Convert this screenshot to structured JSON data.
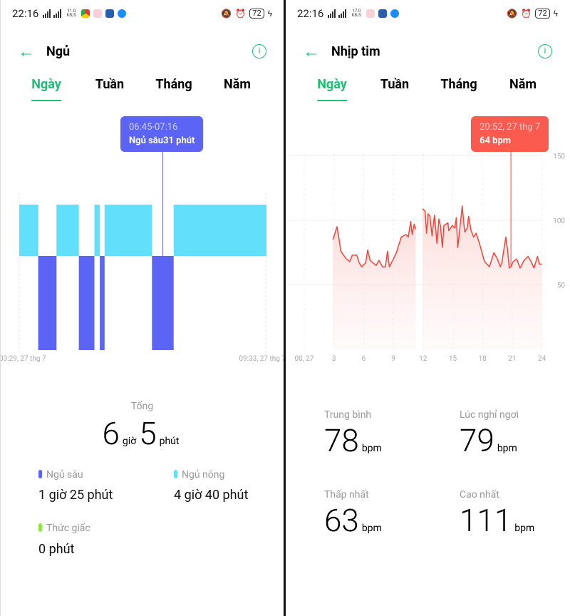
{
  "status_left": {
    "time": "22:16",
    "net_speed": "11.0 KB/S",
    "battery": "72"
  },
  "status_right": {
    "time": "22:16",
    "net_speed": "17.0 KB/S",
    "battery": "72"
  },
  "tabs": [
    "Ngày",
    "Tuần",
    "Tháng",
    "Năm"
  ],
  "sleep": {
    "title": "Ngủ",
    "active_tab": 0,
    "tooltip": {
      "time": "06:45-07:16",
      "label": "Ngủ sâu31 phút"
    },
    "x_start": "03:29, 27 thg 7",
    "x_end": "09:33, 27 thg 7",
    "colors": {
      "deep": "#5b64f4",
      "light": "#62dffb",
      "awake": "#8ee63a"
    },
    "segments": [
      {
        "stage": "light",
        "start": "03:29",
        "end": "03:56"
      },
      {
        "stage": "deep",
        "start": "03:57",
        "end": "04:23"
      },
      {
        "stage": "light",
        "start": "04:24",
        "end": "04:56"
      },
      {
        "stage": "deep",
        "start": "04:57",
        "end": "05:19"
      },
      {
        "stage": "light",
        "start": "05:20",
        "end": "05:27"
      },
      {
        "stage": "deep",
        "start": "05:28",
        "end": "05:34"
      },
      {
        "stage": "light",
        "start": "05:35",
        "end": "06:44"
      },
      {
        "stage": "deep",
        "start": "06:45",
        "end": "07:16"
      },
      {
        "stage": "light",
        "start": "07:17",
        "end": "09:33"
      }
    ],
    "total_label": "Tổng",
    "total_hours": "6",
    "hours_unit": "giờ",
    "total_minutes": "5",
    "minutes_unit": "phút",
    "stats": [
      {
        "label": "Ngủ sâu",
        "value": "1 giờ 25 phút",
        "color": "#5b64f4"
      },
      {
        "label": "Ngủ nông",
        "value": "4 giờ 40 phút",
        "color": "#62dffb"
      },
      {
        "label": "Thức giấc",
        "value": "0 phút",
        "color": "#8ee63a"
      }
    ]
  },
  "heart": {
    "title": "Nhịp tim",
    "active_tab": 0,
    "tooltip": {
      "time": "20:52, 27 thg 7",
      "value": "64 bpm"
    },
    "stats": [
      {
        "label": "Trung bình",
        "value": "78",
        "unit": "bpm"
      },
      {
        "label": "Lúc nghỉ ngơi",
        "value": "79",
        "unit": "bpm"
      },
      {
        "label": "Thấp nhất",
        "value": "63",
        "unit": "bpm"
      },
      {
        "label": "Cao nhất",
        "value": "111",
        "unit": "bpm"
      }
    ]
  },
  "chart_data": {
    "type": "line",
    "color": "#f5443a",
    "x_ticks": [
      "00, 27",
      "3",
      "6",
      "9",
      "12",
      "15",
      "18",
      "21",
      "24"
    ],
    "y_ticks": [
      "150",
      "100",
      "50"
    ],
    "xlim": [
      0,
      24
    ],
    "ylim": [
      0,
      150
    ],
    "grid": true,
    "selected": {
      "x": 20.87,
      "y": 64
    },
    "series": [
      [
        [
          2.9,
          85
        ],
        [
          3.3,
          95
        ],
        [
          3.5,
          86
        ],
        [
          3.7,
          76
        ],
        [
          4.25,
          70
        ],
        [
          4.6,
          68
        ],
        [
          4.85,
          73
        ],
        [
          5.3,
          73
        ],
        [
          5.55,
          67
        ],
        [
          5.8,
          64
        ],
        [
          6.2,
          67
        ],
        [
          6.4,
          77
        ],
        [
          6.65,
          69
        ],
        [
          7.25,
          65
        ],
        [
          7.55,
          69
        ],
        [
          7.9,
          64
        ],
        [
          8.2,
          64
        ],
        [
          8.4,
          76
        ],
        [
          8.6,
          64
        ],
        [
          9.0,
          70
        ],
        [
          9.3,
          75
        ],
        [
          9.8,
          87
        ],
        [
          10.25,
          89
        ],
        [
          10.5,
          87
        ],
        [
          10.75,
          99
        ],
        [
          10.9,
          89
        ],
        [
          11.1,
          97
        ],
        [
          11.25,
          93
        ]
      ],
      [
        [
          11.95,
          109
        ],
        [
          12.2,
          107
        ],
        [
          12.35,
          90
        ],
        [
          12.5,
          105
        ],
        [
          12.7,
          103
        ],
        [
          12.9,
          88
        ],
        [
          13.15,
          104
        ],
        [
          13.4,
          82
        ],
        [
          13.6,
          101
        ],
        [
          13.75,
          96
        ],
        [
          13.95,
          79
        ],
        [
          14.1,
          96
        ],
        [
          14.5,
          98
        ],
        [
          14.6,
          92
        ],
        [
          14.95,
          96
        ],
        [
          15.2,
          94
        ],
        [
          15.35,
          102
        ],
        [
          15.5,
          79
        ],
        [
          15.65,
          89
        ],
        [
          15.95,
          111
        ],
        [
          16.2,
          91
        ],
        [
          16.45,
          94
        ],
        [
          16.6,
          103
        ],
        [
          16.85,
          92
        ],
        [
          17.1,
          87
        ],
        [
          17.35,
          90
        ],
        [
          17.7,
          82
        ],
        [
          18.2,
          68
        ],
        [
          18.7,
          64
        ],
        [
          19.15,
          75
        ],
        [
          19.5,
          70
        ],
        [
          19.8,
          64
        ],
        [
          19.95,
          67
        ],
        [
          20.35,
          87
        ],
        [
          20.55,
          76
        ],
        [
          20.7,
          63
        ],
        [
          20.87,
          64
        ],
        [
          21.1,
          68
        ],
        [
          21.45,
          70
        ],
        [
          21.8,
          63
        ],
        [
          22.2,
          69
        ],
        [
          22.6,
          72
        ],
        [
          22.9,
          68
        ],
        [
          23.2,
          63
        ],
        [
          23.55,
          72
        ],
        [
          23.75,
          66
        ],
        [
          24,
          66
        ]
      ]
    ]
  }
}
